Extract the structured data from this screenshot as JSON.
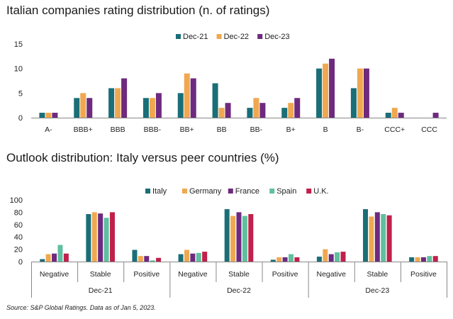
{
  "chart_data": [
    {
      "type": "bar",
      "title": "Italian companies rating distribution (n. of ratings)",
      "categories": [
        "A-",
        "BBB+",
        "BBB",
        "BBB-",
        "BB+",
        "BB",
        "BB-",
        "B+",
        "B",
        "B-",
        "CCC+",
        "CCC"
      ],
      "series": [
        {
          "name": "Dec-21",
          "color": "#1a6e78",
          "values": [
            1,
            4,
            6,
            4,
            5,
            7,
            2,
            2,
            10,
            6,
            1,
            0
          ]
        },
        {
          "name": "Dec-22",
          "color": "#f0a850",
          "values": [
            1,
            5,
            6,
            4,
            9,
            2,
            4,
            3,
            11,
            10,
            2,
            0
          ]
        },
        {
          "name": "Dec-23",
          "color": "#6e2a7e",
          "values": [
            1,
            4,
            8,
            5,
            8,
            3,
            3,
            4,
            12,
            10,
            1,
            1
          ]
        }
      ],
      "ylim": [
        0,
        15
      ],
      "yticks": [
        0,
        5,
        10,
        15
      ],
      "grid": false,
      "legend": "top"
    },
    {
      "type": "bar",
      "title": "Outlook distribution: Italy versus peer countries (%)",
      "groups": [
        "Dec-21",
        "Dec-22",
        "Dec-23"
      ],
      "subcategories": [
        "Negative",
        "Stable",
        "Positive"
      ],
      "series": [
        {
          "name": "Italy",
          "color": "#1a6e78",
          "values": [
            4,
            77,
            19,
            12,
            85,
            3,
            8,
            85,
            7
          ]
        },
        {
          "name": "Germany",
          "color": "#f0a850",
          "values": [
            12,
            80,
            9,
            19,
            74,
            7,
            20,
            73,
            7
          ]
        },
        {
          "name": "France",
          "color": "#6e2a7e",
          "values": [
            13,
            78,
            9,
            13,
            80,
            7,
            12,
            80,
            7
          ]
        },
        {
          "name": "Spain",
          "color": "#5fbf9f",
          "values": [
            27,
            71,
            2,
            14,
            74,
            12,
            15,
            77,
            9
          ]
        },
        {
          "name": "U.K.",
          "color": "#c0204a",
          "values": [
            13,
            80,
            6,
            16,
            77,
            7,
            16,
            75,
            9
          ]
        }
      ],
      "ylim": [
        0,
        100
      ],
      "yticks": [
        0,
        20,
        40,
        60,
        80,
        100
      ],
      "grid": false,
      "legend": "top"
    }
  ],
  "source": "Source: S&P Global Ratings. Data as of Jan 5, 2023."
}
